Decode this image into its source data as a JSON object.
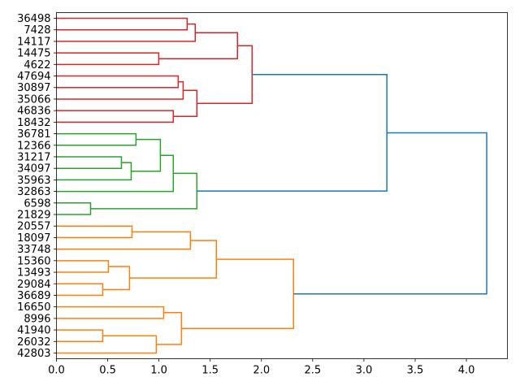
{
  "chart_data": {
    "type": "dendrogram",
    "orientation": "left-to-right",
    "title": "",
    "xlabel": "",
    "ylabel": "",
    "xlim": [
      0,
      4.4
    ],
    "xticks": [
      0.0,
      0.5,
      1.0,
      1.5,
      2.0,
      2.5,
      3.0,
      3.5,
      4.0
    ],
    "xtick_labels": [
      "0.0",
      "0.5",
      "1.0",
      "1.5",
      "2.0",
      "2.5",
      "3.0",
      "3.5",
      "4.0"
    ],
    "grid": false,
    "colors": {
      "red": "#d62728",
      "green": "#2ca02c",
      "orange": "#ff7f0e",
      "blue": "#1f77b4"
    },
    "leaves": [
      "36498",
      "7428",
      "14117",
      "14475",
      "4622",
      "47694",
      "30897",
      "35066",
      "46836",
      "18432",
      "36781",
      "12366",
      "31217",
      "34097",
      "35963",
      "32863",
      "6598",
      "21829",
      "20557",
      "18097",
      "33748",
      "15360",
      "13493",
      "29084",
      "36689",
      "16650",
      "8996",
      "41940",
      "26032",
      "42803"
    ],
    "links": [
      {
        "id": 30,
        "a": 0,
        "b": 1,
        "height": 1.275,
        "color": "red"
      },
      {
        "id": 31,
        "a": 30,
        "b": 2,
        "height": 1.354,
        "color": "red"
      },
      {
        "id": 32,
        "a": 3,
        "b": 4,
        "height": 0.998,
        "color": "red"
      },
      {
        "id": 33,
        "a": 31,
        "b": 32,
        "height": 1.766,
        "color": "red"
      },
      {
        "id": 34,
        "a": 5,
        "b": 6,
        "height": 1.188,
        "color": "red"
      },
      {
        "id": 35,
        "a": 34,
        "b": 7,
        "height": 1.236,
        "color": "red"
      },
      {
        "id": 36,
        "a": 8,
        "b": 9,
        "height": 1.14,
        "color": "red"
      },
      {
        "id": 37,
        "a": 35,
        "b": 36,
        "height": 1.37,
        "color": "red"
      },
      {
        "id": 38,
        "a": 33,
        "b": 37,
        "height": 1.909,
        "color": "red"
      },
      {
        "id": 39,
        "a": 10,
        "b": 11,
        "height": 0.776,
        "color": "green"
      },
      {
        "id": 40,
        "a": 12,
        "b": 13,
        "height": 0.634,
        "color": "green"
      },
      {
        "id": 41,
        "a": 40,
        "b": 14,
        "height": 0.729,
        "color": "green"
      },
      {
        "id": 42,
        "a": 39,
        "b": 41,
        "height": 1.014,
        "color": "green"
      },
      {
        "id": 43,
        "a": 42,
        "b": 15,
        "height": 1.14,
        "color": "green"
      },
      {
        "id": 44,
        "a": 16,
        "b": 17,
        "height": 0.333,
        "color": "green"
      },
      {
        "id": 45,
        "a": 43,
        "b": 44,
        "height": 1.37,
        "color": "green"
      },
      {
        "id": 46,
        "a": 38,
        "b": 45,
        "height": 3.224,
        "color": "blue"
      },
      {
        "id": 47,
        "a": 18,
        "b": 19,
        "height": 0.737,
        "color": "orange"
      },
      {
        "id": 48,
        "a": 47,
        "b": 20,
        "height": 1.307,
        "color": "orange"
      },
      {
        "id": 49,
        "a": 21,
        "b": 22,
        "height": 0.507,
        "color": "orange"
      },
      {
        "id": 50,
        "a": 23,
        "b": 24,
        "height": 0.451,
        "color": "orange"
      },
      {
        "id": 51,
        "a": 49,
        "b": 50,
        "height": 0.713,
        "color": "orange"
      },
      {
        "id": 52,
        "a": 48,
        "b": 51,
        "height": 1.56,
        "color": "orange"
      },
      {
        "id": 53,
        "a": 25,
        "b": 26,
        "height": 1.046,
        "color": "orange"
      },
      {
        "id": 54,
        "a": 27,
        "b": 28,
        "height": 0.451,
        "color": "orange"
      },
      {
        "id": 55,
        "a": 54,
        "b": 29,
        "height": 0.974,
        "color": "orange"
      },
      {
        "id": 56,
        "a": 53,
        "b": 55,
        "height": 1.22,
        "color": "orange"
      },
      {
        "id": 57,
        "a": 52,
        "b": 56,
        "height": 2.313,
        "color": "orange"
      },
      {
        "id": 58,
        "a": 46,
        "b": 57,
        "height": 4.198,
        "color": "blue"
      }
    ]
  }
}
